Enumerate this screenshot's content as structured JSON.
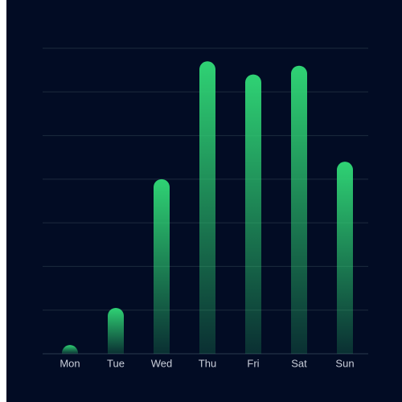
{
  "chart_data": {
    "type": "bar",
    "categories": [
      "Mon",
      "Tue",
      "Wed",
      "Thu",
      "Fri",
      "Sat",
      "Sun"
    ],
    "values": [
      2,
      10.5,
      40,
      67,
      64,
      66,
      44
    ],
    "color": "#2fd274",
    "ylim": [
      0,
      70
    ],
    "yticks": [
      0,
      10,
      20,
      30,
      40,
      50,
      60,
      70
    ],
    "grid": true
  }
}
